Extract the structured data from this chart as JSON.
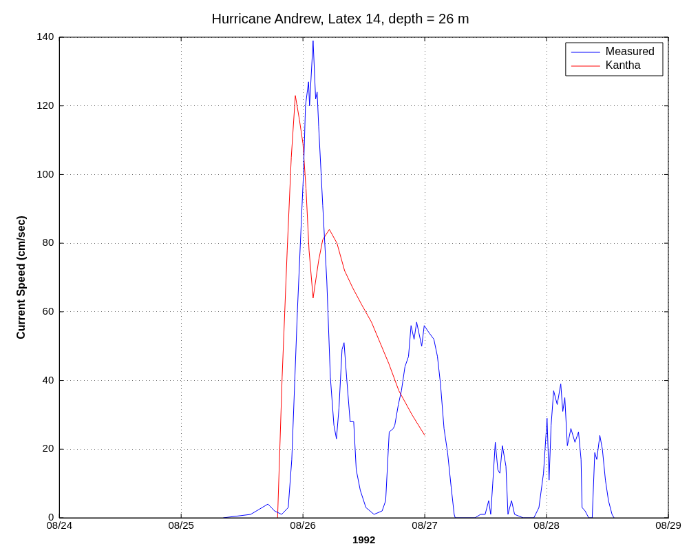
{
  "chart_data": {
    "type": "line",
    "title": "Hurricane Andrew, Latex 14, depth = 26 m",
    "xlabel": "1992",
    "ylabel": "Current Speed (cm/sec)",
    "xlim": [
      "1992-08-24",
      "1992-08-29"
    ],
    "xticks": [
      {
        "value": "1992-08-24",
        "label": "08/24"
      },
      {
        "value": "1992-08-25",
        "label": "08/25"
      },
      {
        "value": "1992-08-26",
        "label": "08/26"
      },
      {
        "value": "1992-08-27",
        "label": "08/27"
      },
      {
        "value": "1992-08-28",
        "label": "08/28"
      },
      {
        "value": "1992-08-29",
        "label": "08/29"
      }
    ],
    "ylim": [
      0,
      140
    ],
    "yticks": [
      0,
      20,
      40,
      60,
      80,
      100,
      120,
      140
    ],
    "grid": true,
    "legend": "top right",
    "series": [
      {
        "name": "Measured",
        "color": "#0000ff",
        "x": [
          "1992-08-25T08:18",
          "1992-08-25T13:42",
          "1992-08-25T17:06",
          "1992-08-25T18:24",
          "1992-08-25T19:48",
          "1992-08-25T21:06",
          "1992-08-25T21:48",
          "1992-08-25T22:54",
          "1992-08-25T23:42",
          "1992-08-26T00:06",
          "1992-08-26T00:30",
          "1992-08-26T01:06",
          "1992-08-26T01:18",
          "1992-08-26T02:00",
          "1992-08-26T02:30",
          "1992-08-26T02:48",
          "1992-08-26T03:06",
          "1992-08-26T03:54",
          "1992-08-26T04:42",
          "1992-08-26T05:24",
          "1992-08-26T06:06",
          "1992-08-26T06:36",
          "1992-08-26T07:06",
          "1992-08-26T07:42",
          "1992-08-26T08:06",
          "1992-08-26T08:36",
          "1992-08-26T09:18",
          "1992-08-26T10:00",
          "1992-08-26T10:30",
          "1992-08-26T11:18",
          "1992-08-26T12:24",
          "1992-08-26T14:00",
          "1992-08-26T15:36",
          "1992-08-26T16:18",
          "1992-08-26T17:00",
          "1992-08-26T17:48",
          "1992-08-26T18:06",
          "1992-08-26T18:48",
          "1992-08-26T19:24",
          "1992-08-26T20:06",
          "1992-08-26T20:48",
          "1992-08-26T21:18",
          "1992-08-26T21:54",
          "1992-08-26T22:24",
          "1992-08-26T23:24",
          "1992-08-26T23:54",
          "1992-08-27T00:48",
          "1992-08-27T01:48",
          "1992-08-27T02:30",
          "1992-08-27T03:06",
          "1992-08-27T03:48",
          "1992-08-27T04:30",
          "1992-08-27T05:12",
          "1992-08-27T05:48",
          "1992-08-27T06:00",
          "1992-08-27T09:54",
          "1992-08-27T11:00",
          "1992-08-27T11:54",
          "1992-08-27T12:36",
          "1992-08-27T13:00",
          "1992-08-27T13:24",
          "1992-08-27T13:54",
          "1992-08-27T14:24",
          "1992-08-27T14:48",
          "1992-08-27T15:18",
          "1992-08-27T16:00",
          "1992-08-27T16:24",
          "1992-08-27T17:06",
          "1992-08-27T17:42",
          "1992-08-27T19:24",
          "1992-08-27T21:30",
          "1992-08-27T22:30",
          "1992-08-27T23:24",
          "1992-08-28T00:06",
          "1992-08-28T00:30",
          "1992-08-28T00:54",
          "1992-08-28T01:24",
          "1992-08-28T02:06",
          "1992-08-28T02:48",
          "1992-08-28T03:12",
          "1992-08-28T03:36",
          "1992-08-28T04:06",
          "1992-08-28T04:48",
          "1992-08-28T05:36",
          "1992-08-28T06:18",
          "1992-08-28T06:48",
          "1992-08-28T07:00",
          "1992-08-28T07:36",
          "1992-08-28T08:18",
          "1992-08-28T09:00",
          "1992-08-28T09:30",
          "1992-08-28T09:54",
          "1992-08-28T10:30",
          "1992-08-28T11:00",
          "1992-08-28T11:36",
          "1992-08-28T12:12",
          "1992-08-28T12:54",
          "1992-08-28T13:18"
        ],
        "values": [
          0,
          1,
          4,
          2,
          1,
          3,
          17,
          60,
          87,
          100,
          120,
          127,
          120,
          139,
          122,
          124,
          114,
          91,
          69,
          41,
          27,
          23,
          32,
          49,
          51,
          41,
          28,
          28,
          14,
          8,
          3,
          1,
          2,
          5,
          25,
          26,
          27,
          33,
          37,
          44,
          47,
          56,
          52,
          57,
          50,
          56,
          54,
          52,
          47,
          39,
          26,
          19,
          9,
          1,
          0,
          0,
          1,
          1,
          5,
          1,
          10,
          22,
          14,
          13,
          21,
          15,
          1,
          5,
          1,
          0,
          0,
          3,
          13,
          29,
          11,
          27,
          37,
          33,
          39,
          31,
          35,
          21,
          26,
          22,
          25,
          17,
          3,
          2,
          0,
          0,
          19,
          17,
          24,
          20,
          11,
          5,
          1,
          0
        ]
      },
      {
        "name": "Kantha",
        "color": "#ff0000",
        "x": [
          "1992-08-25T19:00",
          "1992-08-25T19:54",
          "1992-08-25T20:54",
          "1992-08-25T21:42",
          "1992-08-25T22:30",
          "1992-08-25T23:18",
          "1992-08-26T00:00",
          "1992-08-26T00:36",
          "1992-08-26T01:12",
          "1992-08-26T02:00",
          "1992-08-26T03:06",
          "1992-08-26T03:54",
          "1992-08-26T05:12",
          "1992-08-26T06:42",
          "1992-08-26T08:12",
          "1992-08-26T09:48",
          "1992-08-26T11:36",
          "1992-08-26T13:30",
          "1992-08-26T15:12",
          "1992-08-26T16:54",
          "1992-08-26T18:54",
          "1992-08-26T21:30",
          "1992-08-27T00:00"
        ],
        "values": [
          0,
          41,
          78,
          105,
          123,
          116,
          109,
          96,
          78,
          64,
          75,
          81,
          84,
          80,
          72,
          67,
          62,
          57,
          51,
          45,
          37,
          30,
          24
        ]
      }
    ]
  }
}
